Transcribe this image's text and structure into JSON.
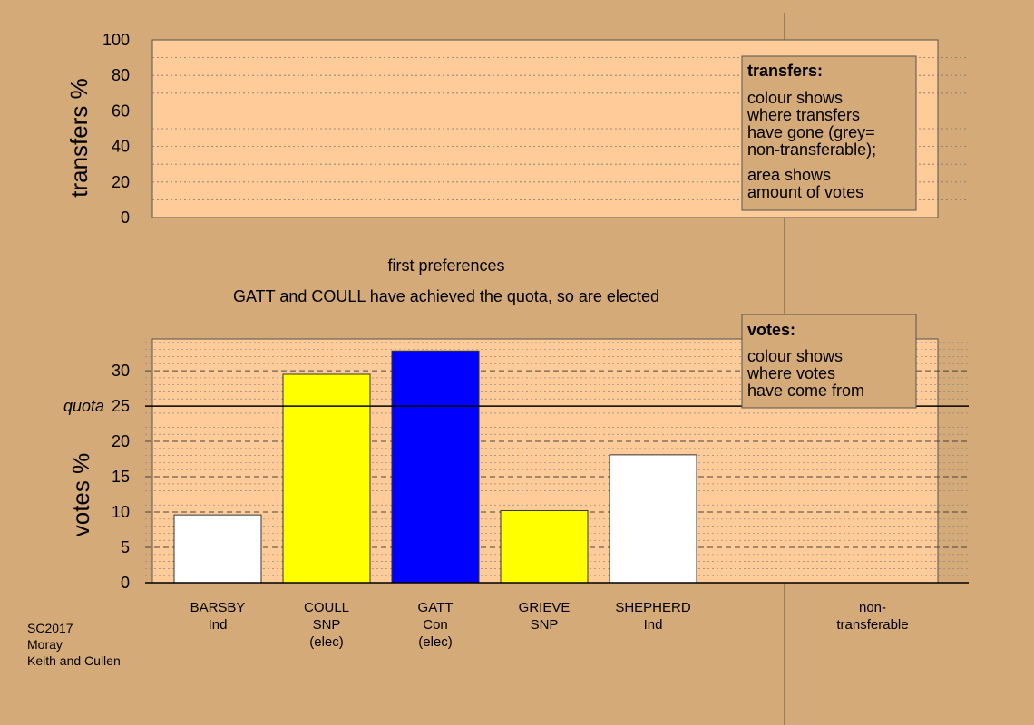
{
  "chart_data": [
    {
      "type": "bar",
      "title": "",
      "ylabel": "transfers %",
      "ylim": [
        0,
        100
      ],
      "yticks": [
        0,
        20,
        40,
        60,
        80,
        100
      ],
      "categories": [],
      "values": [],
      "legend": {
        "heading": "transfers:",
        "lines": [
          "colour shows",
          "where transfers",
          "have gone (grey=",
          "non-transferable);",
          "area shows",
          "amount of votes"
        ]
      }
    },
    {
      "type": "bar",
      "ylabel": "votes %",
      "ylim": [
        0,
        34.5
      ],
      "yticks": [
        0,
        5,
        10,
        15,
        20,
        25,
        30
      ],
      "quota": {
        "label": "quota",
        "value": 25
      },
      "categories": [
        {
          "name": "BARSBY",
          "party": "Ind",
          "note": ""
        },
        {
          "name": "COULL",
          "party": "SNP",
          "note": "(elec)"
        },
        {
          "name": "GATT",
          "party": "Con",
          "note": "(elec)"
        },
        {
          "name": "GRIEVE",
          "party": "SNP",
          "note": ""
        },
        {
          "name": "SHEPHERD",
          "party": "Ind",
          "note": ""
        }
      ],
      "values": [
        9.6,
        29.5,
        32.8,
        10.2,
        18.1
      ],
      "colors": [
        "#ffffff",
        "#ffff00",
        "#0000ff",
        "#ffff00",
        "#ffffff"
      ],
      "nontransferable_label": [
        "non-",
        "transferable"
      ],
      "legend": {
        "heading": "votes:",
        "lines": [
          "colour shows",
          "where votes",
          "have come from"
        ]
      }
    }
  ],
  "captions": {
    "stage": "first preferences",
    "status": "GATT and COULL have achieved the quota, so are elected"
  },
  "corner": {
    "lines": [
      "SC2017",
      "Moray",
      "Keith and Cullen"
    ]
  }
}
